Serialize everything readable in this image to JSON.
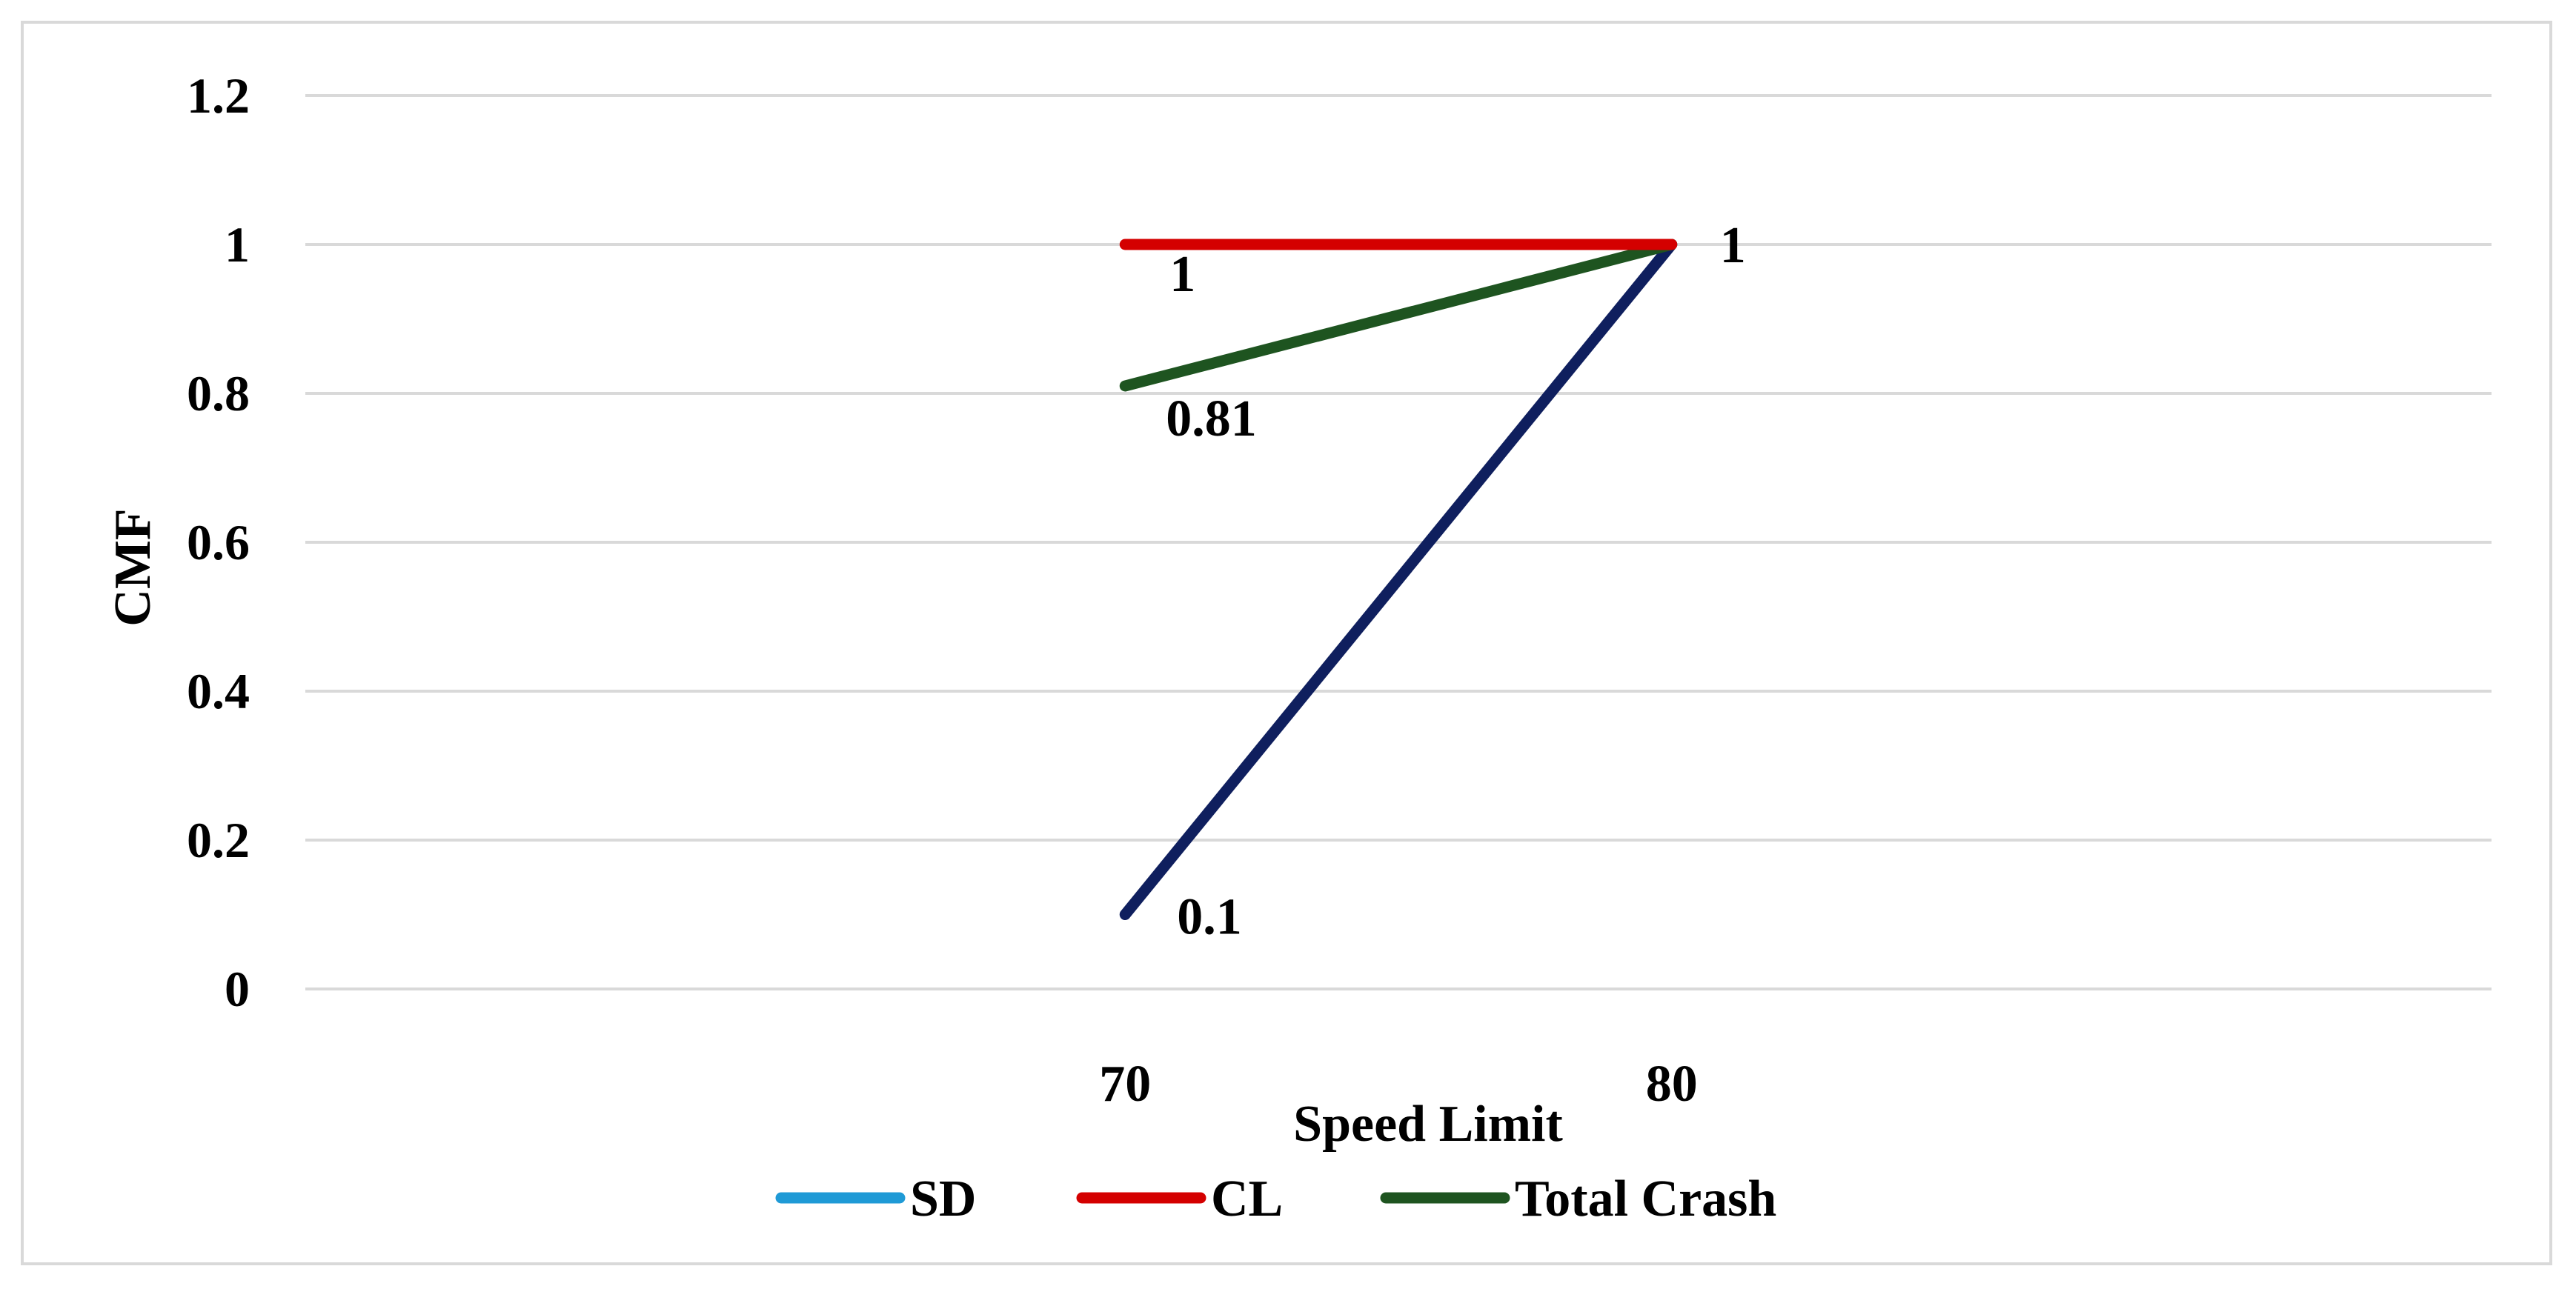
{
  "chart_data": {
    "type": "line",
    "title": "",
    "xlabel": "Speed Limit",
    "ylabel": "CMF",
    "categories": [
      "",
      "70",
      "80",
      ""
    ],
    "x_tick_labels": [
      "70",
      "80"
    ],
    "y_tick_labels": [
      "0",
      "0.2",
      "0.4",
      "0.6",
      "0.8",
      "1",
      "1.2"
    ],
    "ylim": [
      0,
      1.2
    ],
    "grid": true,
    "legend_position": "bottom",
    "series": [
      {
        "name": "SD",
        "color": "#0f1f5e",
        "legend_color": "#1f9ad6",
        "values": [
          null,
          0.1,
          1,
          null
        ],
        "labels": [
          null,
          "0.1",
          null,
          null
        ]
      },
      {
        "name": "CL",
        "color": "#d40000",
        "legend_color": "#d40000",
        "values": [
          null,
          1,
          1,
          null
        ],
        "labels": [
          null,
          "1",
          null,
          null
        ]
      },
      {
        "name": "Total Crash",
        "color": "#1e5420",
        "legend_color": "#1e5420",
        "values": [
          null,
          0.81,
          1,
          null
        ],
        "labels": [
          null,
          "0.81",
          "1",
          null
        ]
      }
    ]
  }
}
